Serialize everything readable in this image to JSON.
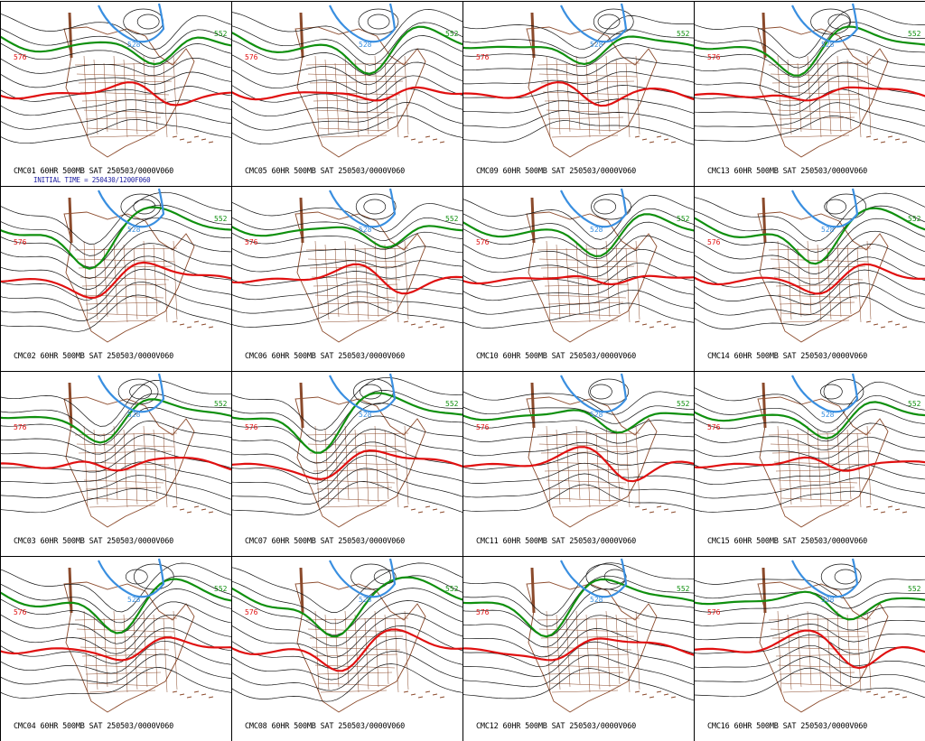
{
  "panels": [
    {
      "caption": "CMC01 60HR 500MB SAT 250503/0000V060",
      "subcaption": "INITIAL TIME = 250430/1200F060"
    },
    {
      "caption": "CMC05 60HR 500MB SAT 250503/0000V060"
    },
    {
      "caption": "CMC09 60HR 500MB SAT 250503/0000V060"
    },
    {
      "caption": "CMC13 60HR 500MB SAT 250503/0000V060"
    },
    {
      "caption": "CMC02 60HR 500MB SAT 250503/0000V060"
    },
    {
      "caption": "CMC06 60HR 500MB SAT 250503/0000V060"
    },
    {
      "caption": "CMC10 60HR 500MB SAT 250503/0000V060"
    },
    {
      "caption": "CMC14 60HR 500MB SAT 250503/0000V060"
    },
    {
      "caption": "CMC03 60HR 500MB SAT 250503/0000V060"
    },
    {
      "caption": "CMC07 60HR 500MB SAT 250503/0000V060"
    },
    {
      "caption": "CMC11 60HR 500MB SAT 250503/0000V060"
    },
    {
      "caption": "CMC15 60HR 500MB SAT 250503/0000V060"
    },
    {
      "caption": "CMC04 60HR 500MB SAT 250503/0000V060"
    },
    {
      "caption": "CMC08 60HR 500MB SAT 250503/0000V060"
    },
    {
      "caption": "CMC12 60HR 500MB SAT 250503/0000V060"
    },
    {
      "caption": "CMC16 60HR 500MB SAT 250503/0000V060"
    }
  ],
  "contour_labels": {
    "red": "576",
    "green": "552",
    "blue": "528"
  },
  "colors": {
    "red": "#e01010",
    "green": "#10900f",
    "blue": "#3a8fe0",
    "black": "#111111",
    "map": "#8b4a2b",
    "caption_blue": "#1a1aa0"
  }
}
